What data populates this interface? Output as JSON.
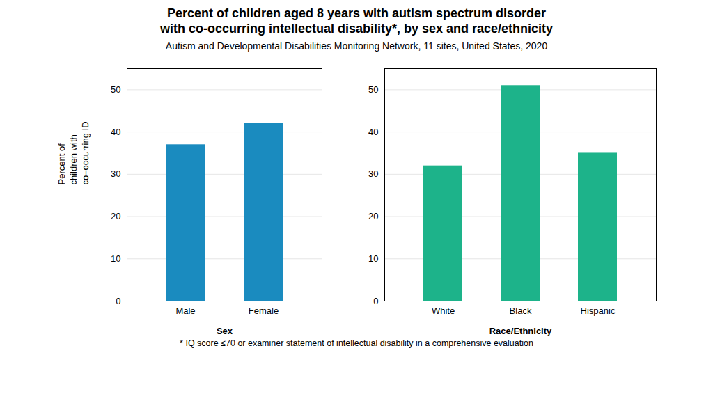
{
  "title": "Percent of children aged 8 years with autism spectrum disorder\nwith co-occurring intellectual disability*, by sex and race/ethnicity",
  "subtitle": "Autism and Developmental Disabilities Monitoring Network, 11 sites, United States, 2020",
  "footnote": "* IQ score ≤70 or examiner statement of intellectual disability in a comprehensive evaluation",
  "chart_data": [
    {
      "type": "bar",
      "x_label": "Sex",
      "y_label": "Percent of\nchildren with\nco–occurring ID",
      "categories": [
        "Male",
        "Female"
      ],
      "values": [
        37,
        42
      ],
      "color": "#1a8bbf",
      "ylim": [
        0,
        55
      ],
      "yticks": [
        0,
        10,
        20,
        30,
        40,
        50
      ],
      "grid": true
    },
    {
      "type": "bar",
      "x_label": "Race/Ethnicity",
      "categories": [
        "White",
        "Black",
        "Hispanic"
      ],
      "values": [
        32,
        51,
        35
      ],
      "color": "#1db38a",
      "ylim": [
        0,
        55
      ],
      "yticks": [
        0,
        10,
        20,
        30,
        40,
        50
      ],
      "grid": true
    }
  ]
}
